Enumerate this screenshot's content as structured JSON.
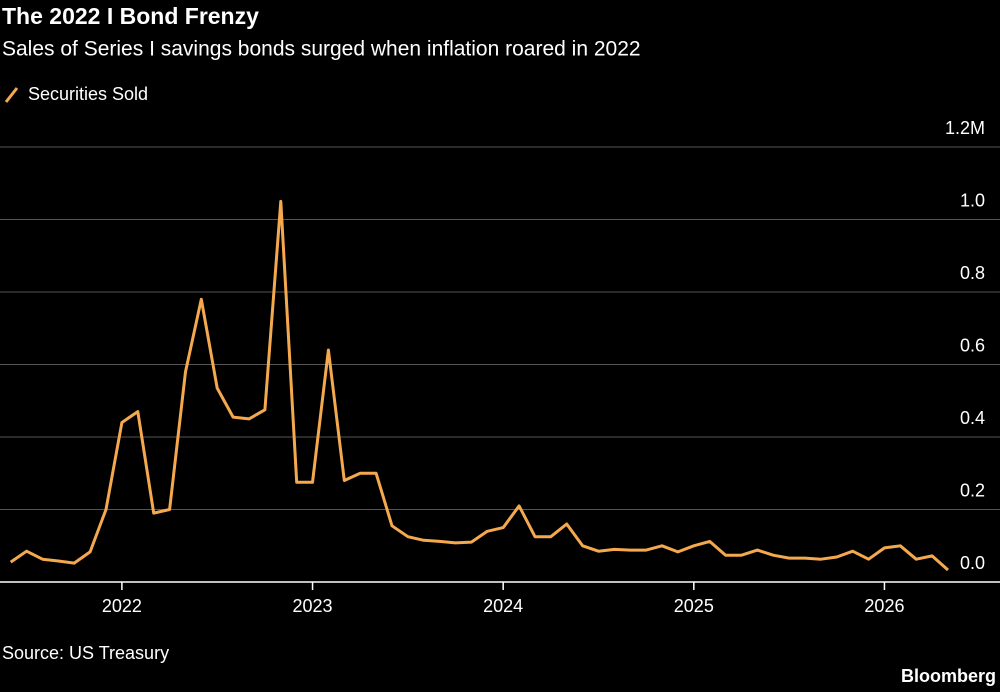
{
  "chart_data": {
    "type": "line",
    "title": "The 2022 I Bond Frenzy",
    "subtitle": "Sales of Series I savings bonds surged when inflation roared in 2022",
    "source": "Source: US Treasury",
    "branding": "Bloomberg",
    "categories": [
      null,
      null,
      null,
      null,
      null,
      null,
      null,
      "2022",
      null,
      null,
      null,
      null,
      null,
      null,
      null,
      null,
      null,
      null,
      null,
      "2023",
      null,
      null,
      null,
      null,
      null,
      null,
      null,
      null,
      null,
      null,
      null,
      "2024",
      null,
      null,
      null,
      null,
      null,
      null,
      null,
      null,
      null,
      null,
      null,
      "2025",
      null,
      null,
      null,
      null,
      null,
      null,
      null,
      null,
      null,
      null,
      null,
      "2026",
      null,
      null,
      null,
      null
    ],
    "series": [
      {
        "name": "Securities Sold",
        "color": "#f5a94e",
        "values": [
          0.055,
          0.085,
          0.063,
          0.058,
          0.052,
          0.083,
          0.2,
          0.44,
          0.47,
          0.19,
          0.2,
          0.58,
          0.78,
          0.535,
          0.455,
          0.45,
          0.475,
          1.05,
          0.275,
          0.275,
          0.64,
          0.28,
          0.3,
          0.3,
          0.155,
          0.125,
          0.115,
          0.112,
          0.108,
          0.11,
          0.14,
          0.15,
          0.21,
          0.125,
          0.125,
          0.16,
          0.1,
          0.085,
          0.09,
          0.088,
          0.088,
          0.1,
          0.083,
          0.1,
          0.112,
          0.074,
          0.074,
          0.088,
          0.074,
          0.066,
          0.066,
          0.063,
          0.069,
          0.085,
          0.063,
          0.094,
          0.1,
          0.063,
          0.072,
          0.033
        ]
      }
    ],
    "ylim": [
      0,
      1.2
    ],
    "yticks": [
      {
        "value": 0,
        "label": "0.0"
      },
      0.2,
      0.4,
      0.6,
      0.8,
      {
        "value": 1,
        "label": "1.0"
      },
      {
        "value": 1.2,
        "label": "1.2M"
      }
    ],
    "grid": true
  }
}
